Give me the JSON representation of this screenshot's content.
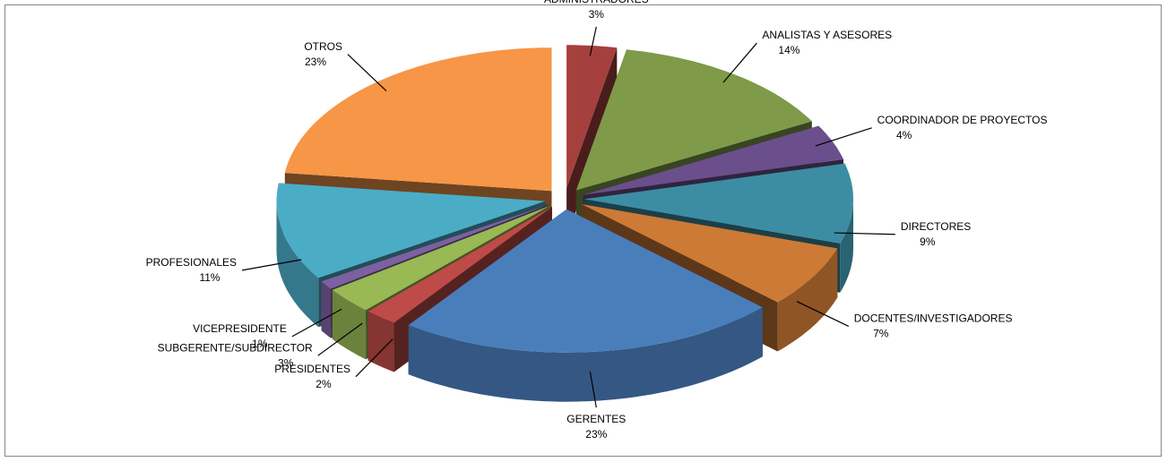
{
  "chart_data": {
    "type": "pie",
    "categories": [
      "ADMINISTRADORES",
      "ANALISTAS Y ASESORES",
      "COORDINADOR DE PROYECTOS",
      "DIRECTORES",
      "DOCENTES/INVESTIGADORES",
      "GERENTES",
      "PRESIDENTES",
      "SUBGERENTE/SUBDIRECTOR",
      "VICEPRESIDENTE",
      "PROFESIONALES",
      "OTROS"
    ],
    "values": [
      3,
      14,
      4,
      9,
      7,
      23,
      2,
      3,
      1,
      11,
      23
    ],
    "value_labels": [
      "3%",
      "14%",
      "4%",
      "9%",
      "7%",
      "23%",
      "2%",
      "3%",
      "1%",
      "11%",
      "23%"
    ],
    "colors": [
      "#a5403e",
      "#7f9a48",
      "#6a4f8c",
      "#3c8da3",
      "#cc7a35",
      "#4a7ebb",
      "#be4b48",
      "#98b954",
      "#7d60a0",
      "#4bacc6",
      "#f79646"
    ]
  }
}
